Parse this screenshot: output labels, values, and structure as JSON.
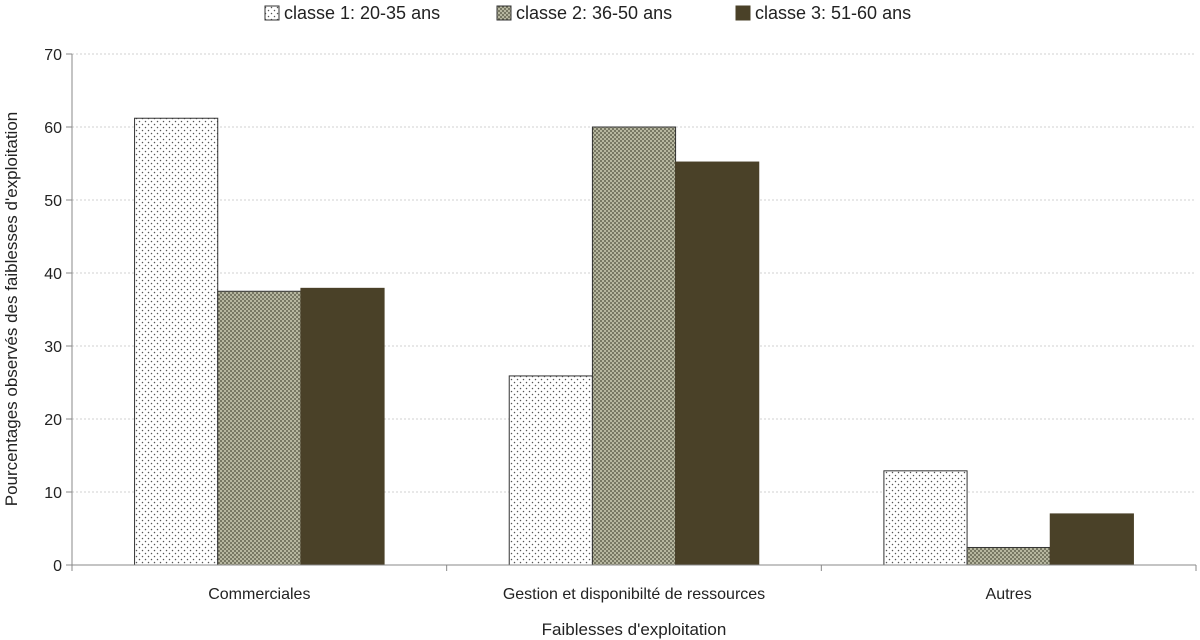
{
  "chart_data": {
    "type": "bar",
    "title": "",
    "xlabel": "Faiblesses d'exploitation",
    "ylabel": "Pourcentages observés des faiblesses d'exploitation",
    "ylim": [
      0,
      70
    ],
    "yticks": [
      0,
      10,
      20,
      30,
      40,
      50,
      60,
      70
    ],
    "grid": true,
    "legend_position": "top-center",
    "categories": [
      "Commerciales",
      "Gestion et disponibilté de ressources",
      "Autres"
    ],
    "series": [
      {
        "name": "classe 1: 20-35 ans",
        "values": [
          61.2,
          25.9,
          12.9
        ],
        "pattern": "sparse-dots",
        "color": "#ffffff"
      },
      {
        "name": "classe 2: 36-50 ans",
        "values": [
          37.5,
          60.0,
          2.4
        ],
        "pattern": "dense-dots",
        "color": "#8a8a6a"
      },
      {
        "name": "classe 3: 51-60 ans",
        "values": [
          37.9,
          55.2,
          7.0
        ],
        "pattern": "solid",
        "color": "#4a4128"
      }
    ]
  }
}
